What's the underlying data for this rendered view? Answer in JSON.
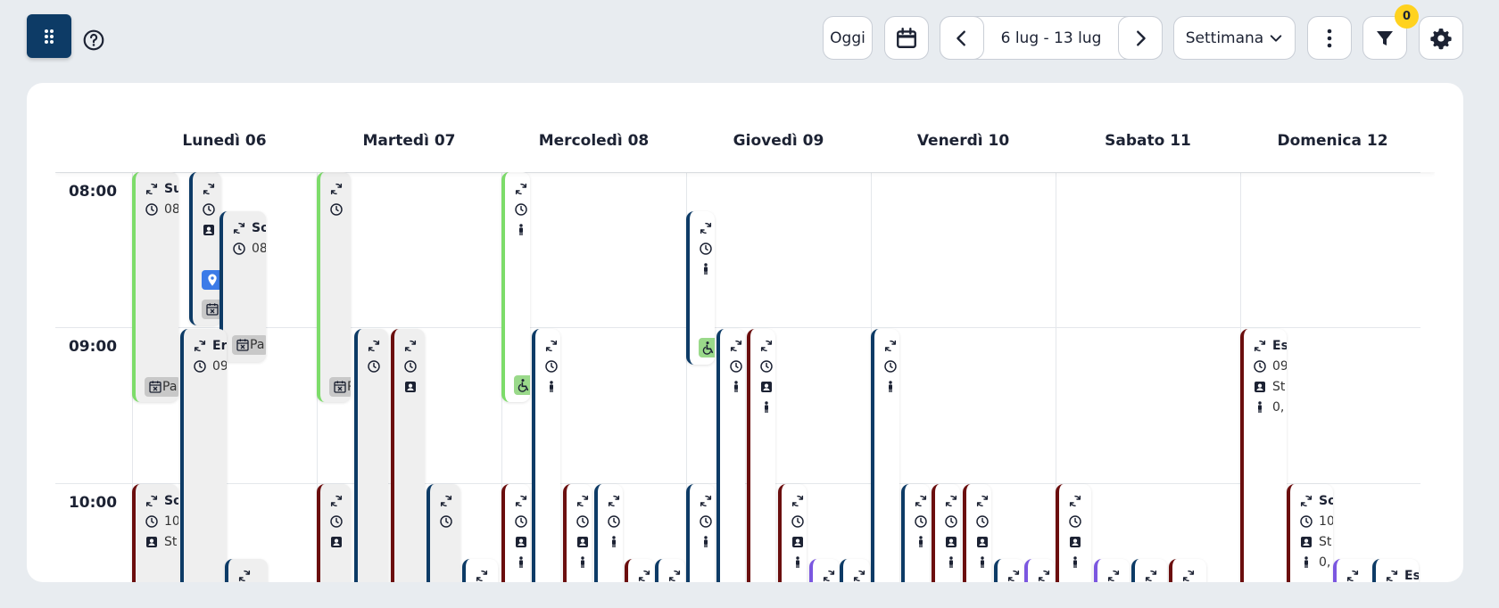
{
  "toolbar": {
    "today_label": "Oggi",
    "date_range": "6 lug - 13 lug",
    "view_label": "Settimana",
    "filter_count": "0"
  },
  "days": [
    "Lunedì 06",
    "Martedì 07",
    "Mercoledì 08",
    "Giovedì 09",
    "Venerdì 10",
    "Sabato 11",
    "Domenica 12"
  ],
  "hours": [
    "08:00",
    "09:00",
    "10:00"
  ],
  "event_text": {
    "su": "Su",
    "o8": "08",
    "so": "So",
    "o8b": "08",
    "er": "Er",
    "o9": "09",
    "pa": "Pa",
    "p": "P",
    "es": "Es",
    "o9b": "09",
    "st": "St",
    "zero": "0,",
    "so2": "So",
    "o10": "10",
    "st2": "St",
    "zero2": "0,",
    "s": "S",
    "o1": "1"
  },
  "icons": {
    "apps": "apps-grid-icon",
    "help": "help-circle-icon",
    "calendar": "calendar-icon",
    "prev": "chevron-left-icon",
    "next": "chevron-right-icon",
    "view": "chevron-down-icon",
    "more": "more-vertical-icon",
    "filter": "filter-icon",
    "settings": "gear-icon"
  },
  "colors": {
    "primary": "#0d3b66",
    "red_event": "#6b0e0e",
    "green_event": "#7ddc6a",
    "purple_event": "#7b57e0",
    "badge": "#ffd21f",
    "background": "#e8ecf0"
  }
}
